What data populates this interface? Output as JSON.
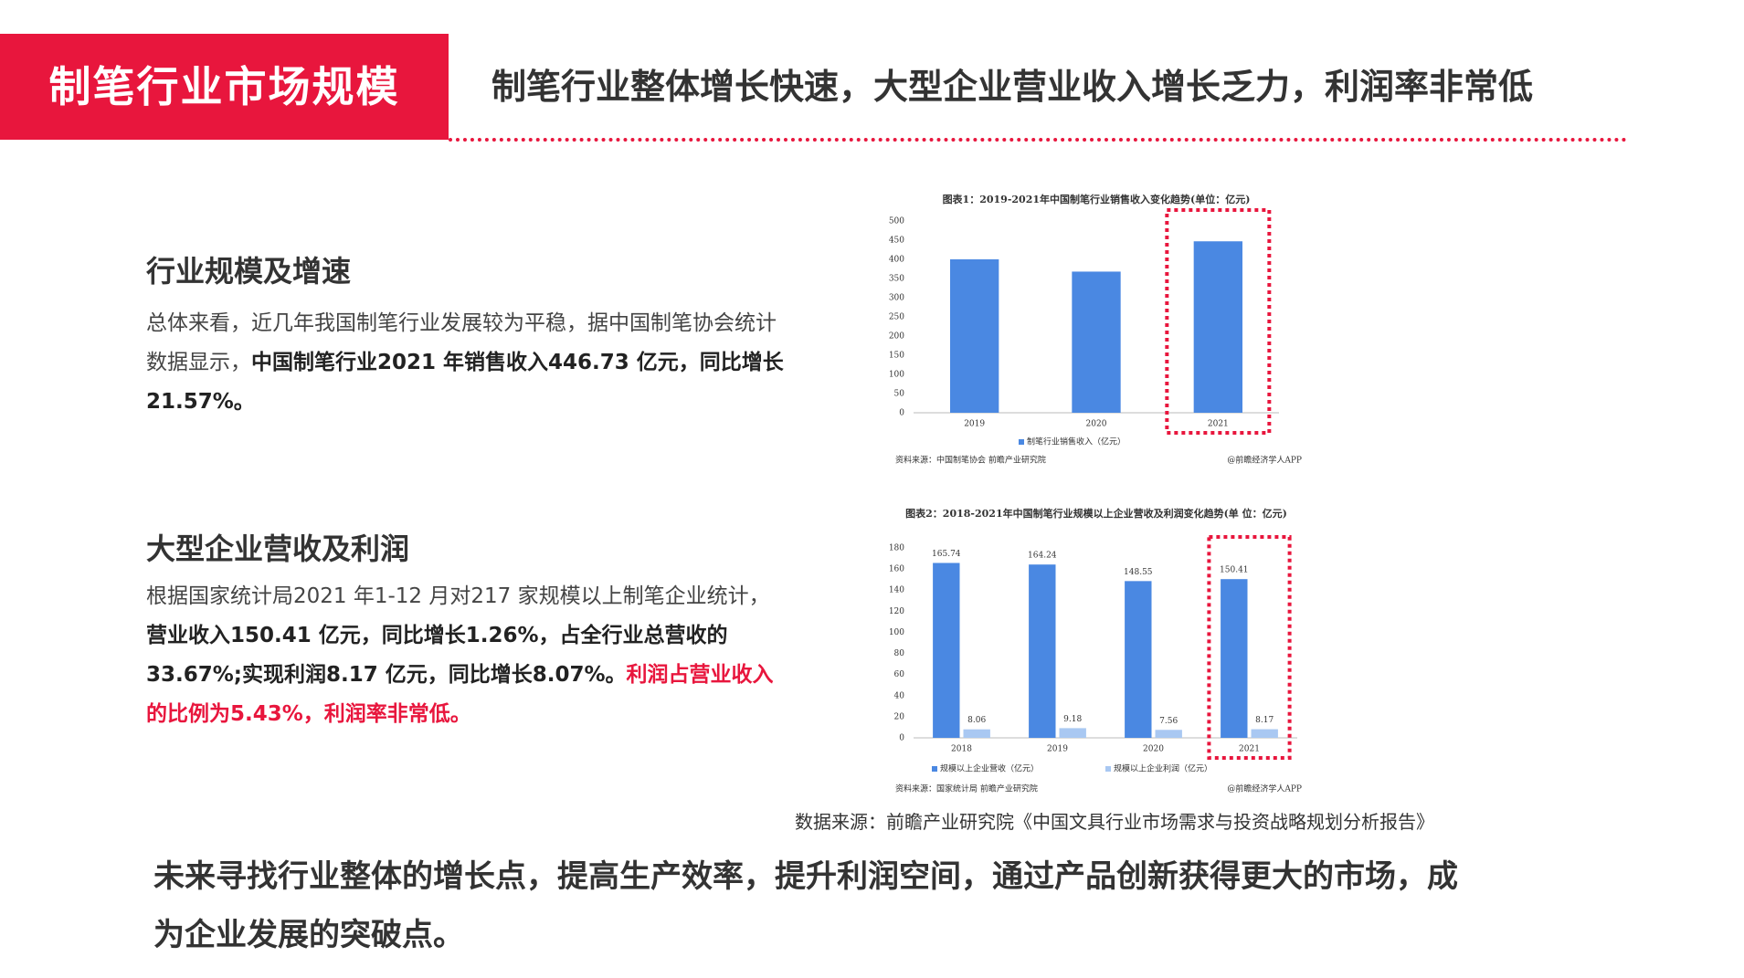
{
  "header": {
    "label": "制笔行业市场规模",
    "title": "制笔行业整体增长快速，大型企业营业收入增长乏力，利润率非常低"
  },
  "sections": [
    {
      "heading": "行业规模及增速",
      "paragraph": [
        {
          "text": "总体来看，近几年我国制笔行业发展较为平稳，据中国制笔协会统计数据显示，",
          "style": "normal"
        },
        {
          "text": "中国制笔行业2021 年销售收入446.73 亿元，同比增长21.57%。",
          "style": "bold"
        }
      ]
    },
    {
      "heading": "大型企业营收及利润",
      "paragraph": [
        {
          "text": "根据国家统计局2021 年1-12 月对217 家规模以上制笔企业统计，",
          "style": "normal"
        },
        {
          "text": "营业收入150.41 亿元，同比增长1.26%，占全行业总营收的33.67%;实现利润8.17 亿元，同比增长8.07%。",
          "style": "bold"
        },
        {
          "text": "利润占营业收入的比例为5.43%，利润率非常低。",
          "style": "red-bold"
        }
      ]
    }
  ],
  "chart_data": [
    {
      "type": "bar",
      "title": "图表1：2019-2021年中国制笔行业销售收入变化趋势(单位：亿元)",
      "categories": [
        "2019",
        "2020",
        "2021"
      ],
      "series": [
        {
          "name": "制笔行业销售收入（亿元）",
          "color": "#4a88e2",
          "values": [
            400,
            368,
            447
          ]
        }
      ],
      "ylim": [
        0,
        500
      ],
      "yticks": [
        0,
        50,
        100,
        150,
        200,
        250,
        300,
        350,
        400,
        450,
        500
      ],
      "source": "资料来源：中国制笔协会 前瞻产业研究院",
      "credit": "@前瞻经济学人APP"
    },
    {
      "type": "bar",
      "title": "图表2：2018-2021年中国制笔行业规模以上企业营收及利润变化趋势(单 位：亿元)",
      "categories": [
        "2018",
        "2019",
        "2020",
        "2021"
      ],
      "series": [
        {
          "name": "规模以上企业营收（亿元）",
          "color": "#4a88e2",
          "values": [
            165.74,
            164.24,
            148.55,
            150.41
          ]
        },
        {
          "name": "规模以上企业利润（亿元）",
          "color": "#a9c8f2",
          "values": [
            8.06,
            9.18,
            7.56,
            8.17
          ]
        }
      ],
      "data_labels": true,
      "ylim": [
        0,
        180
      ],
      "yticks": [
        0,
        20,
        40,
        60,
        80,
        100,
        120,
        140,
        160,
        180
      ],
      "source": "资料来源：国家统计局 前瞻产业研究院",
      "credit": "@前瞻经济学人APP"
    }
  ],
  "source": "数据来源：前瞻产业研究院《中国文具行业市场需求与投资战略规划分析报告》",
  "conclusion": "未来寻找行业整体的增长点，提高生产效率，提升利润空间，通过产品创新获得更大的市场，成为企业发展的突破点。"
}
